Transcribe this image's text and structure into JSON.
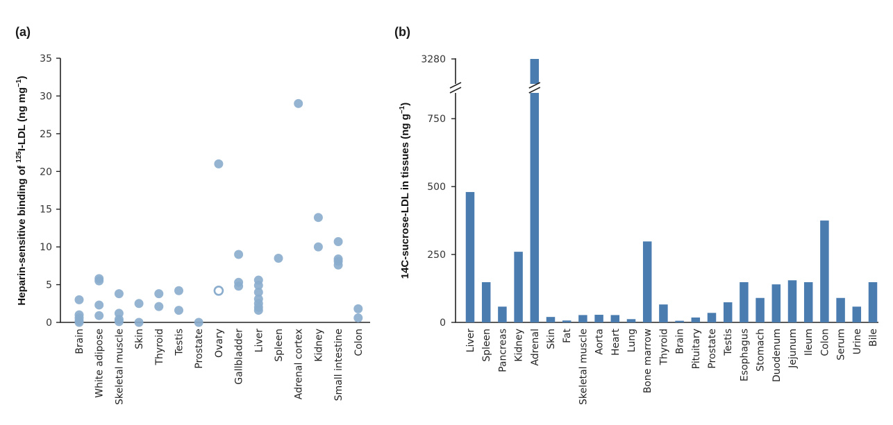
{
  "chart_data": [
    {
      "panel": "(a)",
      "type": "scatter",
      "ylabel": {
        "prefix": "Heparin-sensitive binding of ",
        "sup_iso": "125",
        "mid": "I-LDL (ng mg",
        "sup_unit": "−1",
        "suffix": ")"
      },
      "ylim": [
        0,
        35
      ],
      "yticks": [
        0,
        5,
        10,
        15,
        20,
        25,
        30,
        35
      ],
      "color": "#8aaccd",
      "categories": [
        "Brain",
        "White adipose",
        "Skeletal muscle",
        "Skin",
        "Thyroid",
        "Testis",
        "Prostate",
        "Ovary",
        "Gallbladder",
        "Liver",
        "Spleen",
        "Adrenal cortex",
        "Kidney",
        "Small intestine",
        "Colon"
      ],
      "points": [
        {
          "cat": "Brain",
          "y": 3.0
        },
        {
          "cat": "Brain",
          "y": 1.0
        },
        {
          "cat": "Brain",
          "y": 0.6
        },
        {
          "cat": "Brain",
          "y": 0.2
        },
        {
          "cat": "Brain",
          "y": 0.0
        },
        {
          "cat": "White adipose",
          "y": 5.8
        },
        {
          "cat": "White adipose",
          "y": 5.5
        },
        {
          "cat": "White adipose",
          "y": 2.3
        },
        {
          "cat": "White adipose",
          "y": 0.9
        },
        {
          "cat": "Skeletal muscle",
          "y": 3.8
        },
        {
          "cat": "Skeletal muscle",
          "y": 1.2
        },
        {
          "cat": "Skeletal muscle",
          "y": 0.4
        },
        {
          "cat": "Skeletal muscle",
          "y": 0.1
        },
        {
          "cat": "Skin",
          "y": 2.5
        },
        {
          "cat": "Skin",
          "y": 0.0
        },
        {
          "cat": "Thyroid",
          "y": 3.8
        },
        {
          "cat": "Thyroid",
          "y": 2.1
        },
        {
          "cat": "Testis",
          "y": 4.2
        },
        {
          "cat": "Testis",
          "y": 1.6
        },
        {
          "cat": "Prostate",
          "y": 0.0
        },
        {
          "cat": "Ovary",
          "y": 21.0
        },
        {
          "cat": "Ovary",
          "y": 4.2,
          "hollow": true
        },
        {
          "cat": "Gallbladder",
          "y": 9.0
        },
        {
          "cat": "Gallbladder",
          "y": 5.3
        },
        {
          "cat": "Gallbladder",
          "y": 4.8
        },
        {
          "cat": "Liver",
          "y": 5.6
        },
        {
          "cat": "Liver",
          "y": 4.9
        },
        {
          "cat": "Liver",
          "y": 4.0
        },
        {
          "cat": "Liver",
          "y": 3.1
        },
        {
          "cat": "Liver",
          "y": 2.5
        },
        {
          "cat": "Liver",
          "y": 2.0
        },
        {
          "cat": "Liver",
          "y": 1.6
        },
        {
          "cat": "Spleen",
          "y": 8.5
        },
        {
          "cat": "Adrenal cortex",
          "y": 29.0
        },
        {
          "cat": "Kidney",
          "y": 13.9
        },
        {
          "cat": "Kidney",
          "y": 10.0
        },
        {
          "cat": "Small intestine",
          "y": 10.7
        },
        {
          "cat": "Small intestine",
          "y": 8.4
        },
        {
          "cat": "Small intestine",
          "y": 8.1
        },
        {
          "cat": "Small intestine",
          "y": 7.6
        },
        {
          "cat": "Colon",
          "y": 1.8
        },
        {
          "cat": "Colon",
          "y": 0.6
        }
      ]
    },
    {
      "panel": "(b)",
      "type": "bar",
      "ylabel": {
        "prefix": "14C-sucrose-LDL in tissues (ng g",
        "sup_unit": "−1",
        "suffix": ")"
      },
      "ylim": [
        0,
        3280
      ],
      "axis_break": {
        "lower_max": 850,
        "upper_tick": 3280
      },
      "yticks": [
        0,
        250,
        500,
        750
      ],
      "ytick_upper_label": "3280",
      "color": "#4a7cb0",
      "categories": [
        "Liver",
        "Spleen",
        "Pancreas",
        "Kidney",
        "Adrenal",
        "Skin",
        "Fat",
        "Skeletal muscle",
        "Aorta",
        "Heart",
        "Lung",
        "Bone marrow",
        "Thyroid",
        "Brain",
        "Pituitary",
        "Prostate",
        "Testis",
        "Esophagus",
        "Stomach",
        "Duodenum",
        "Jejunum",
        "Ileum",
        "Colon",
        "Serum",
        "Urine",
        "Bile"
      ],
      "values": [
        480,
        148,
        58,
        260,
        3280,
        20,
        7,
        27,
        28,
        27,
        12,
        298,
        66,
        6,
        18,
        35,
        74,
        148,
        90,
        140,
        155,
        148,
        375,
        90,
        58,
        148
      ]
    }
  ]
}
